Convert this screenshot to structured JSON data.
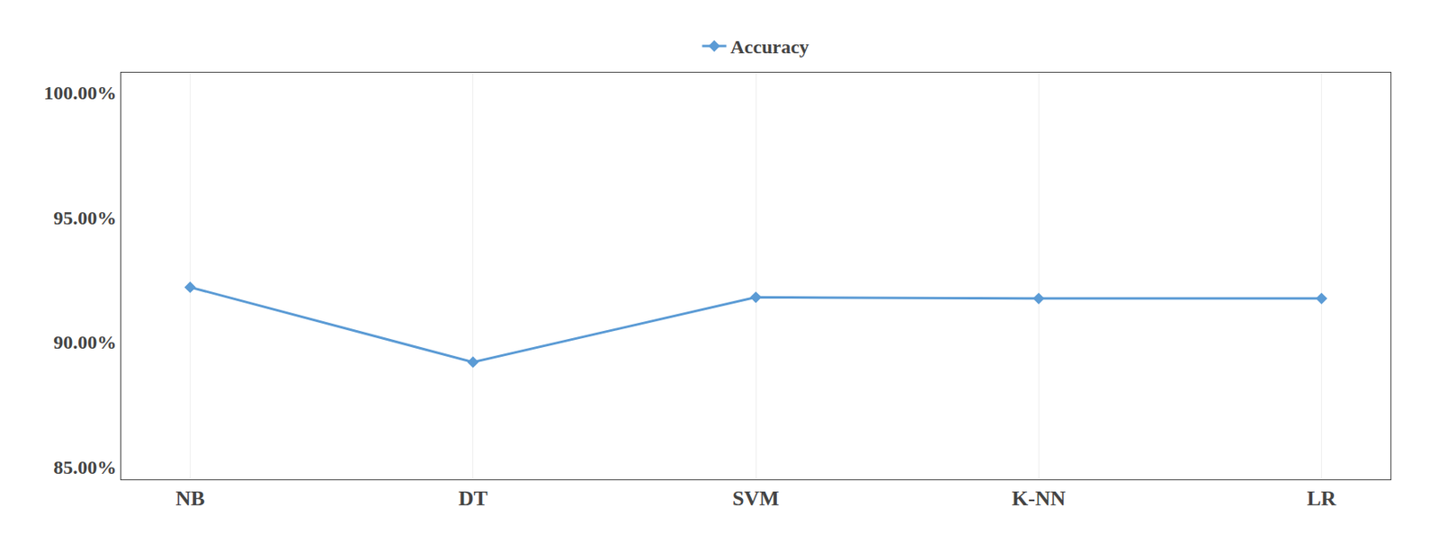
{
  "chart_data": {
    "type": "line",
    "categories": [
      "NB",
      "DT",
      "SVM",
      "K-NN",
      "LR"
    ],
    "series": [
      {
        "name": "Accuracy",
        "color": "#5b9bd5",
        "marker": "diamond",
        "values": [
          0.922,
          0.892,
          0.918,
          0.9175,
          0.9175
        ]
      }
    ],
    "ylim": [
      0.845,
      1.008
    ],
    "yticks": [
      {
        "value": 0.85,
        "label": "85.00%"
      },
      {
        "value": 0.9,
        "label": "90.00%"
      },
      {
        "value": 0.95,
        "label": "95.00%"
      },
      {
        "value": 1.0,
        "label": "100.00%"
      }
    ],
    "grid": true,
    "legend": "top"
  }
}
